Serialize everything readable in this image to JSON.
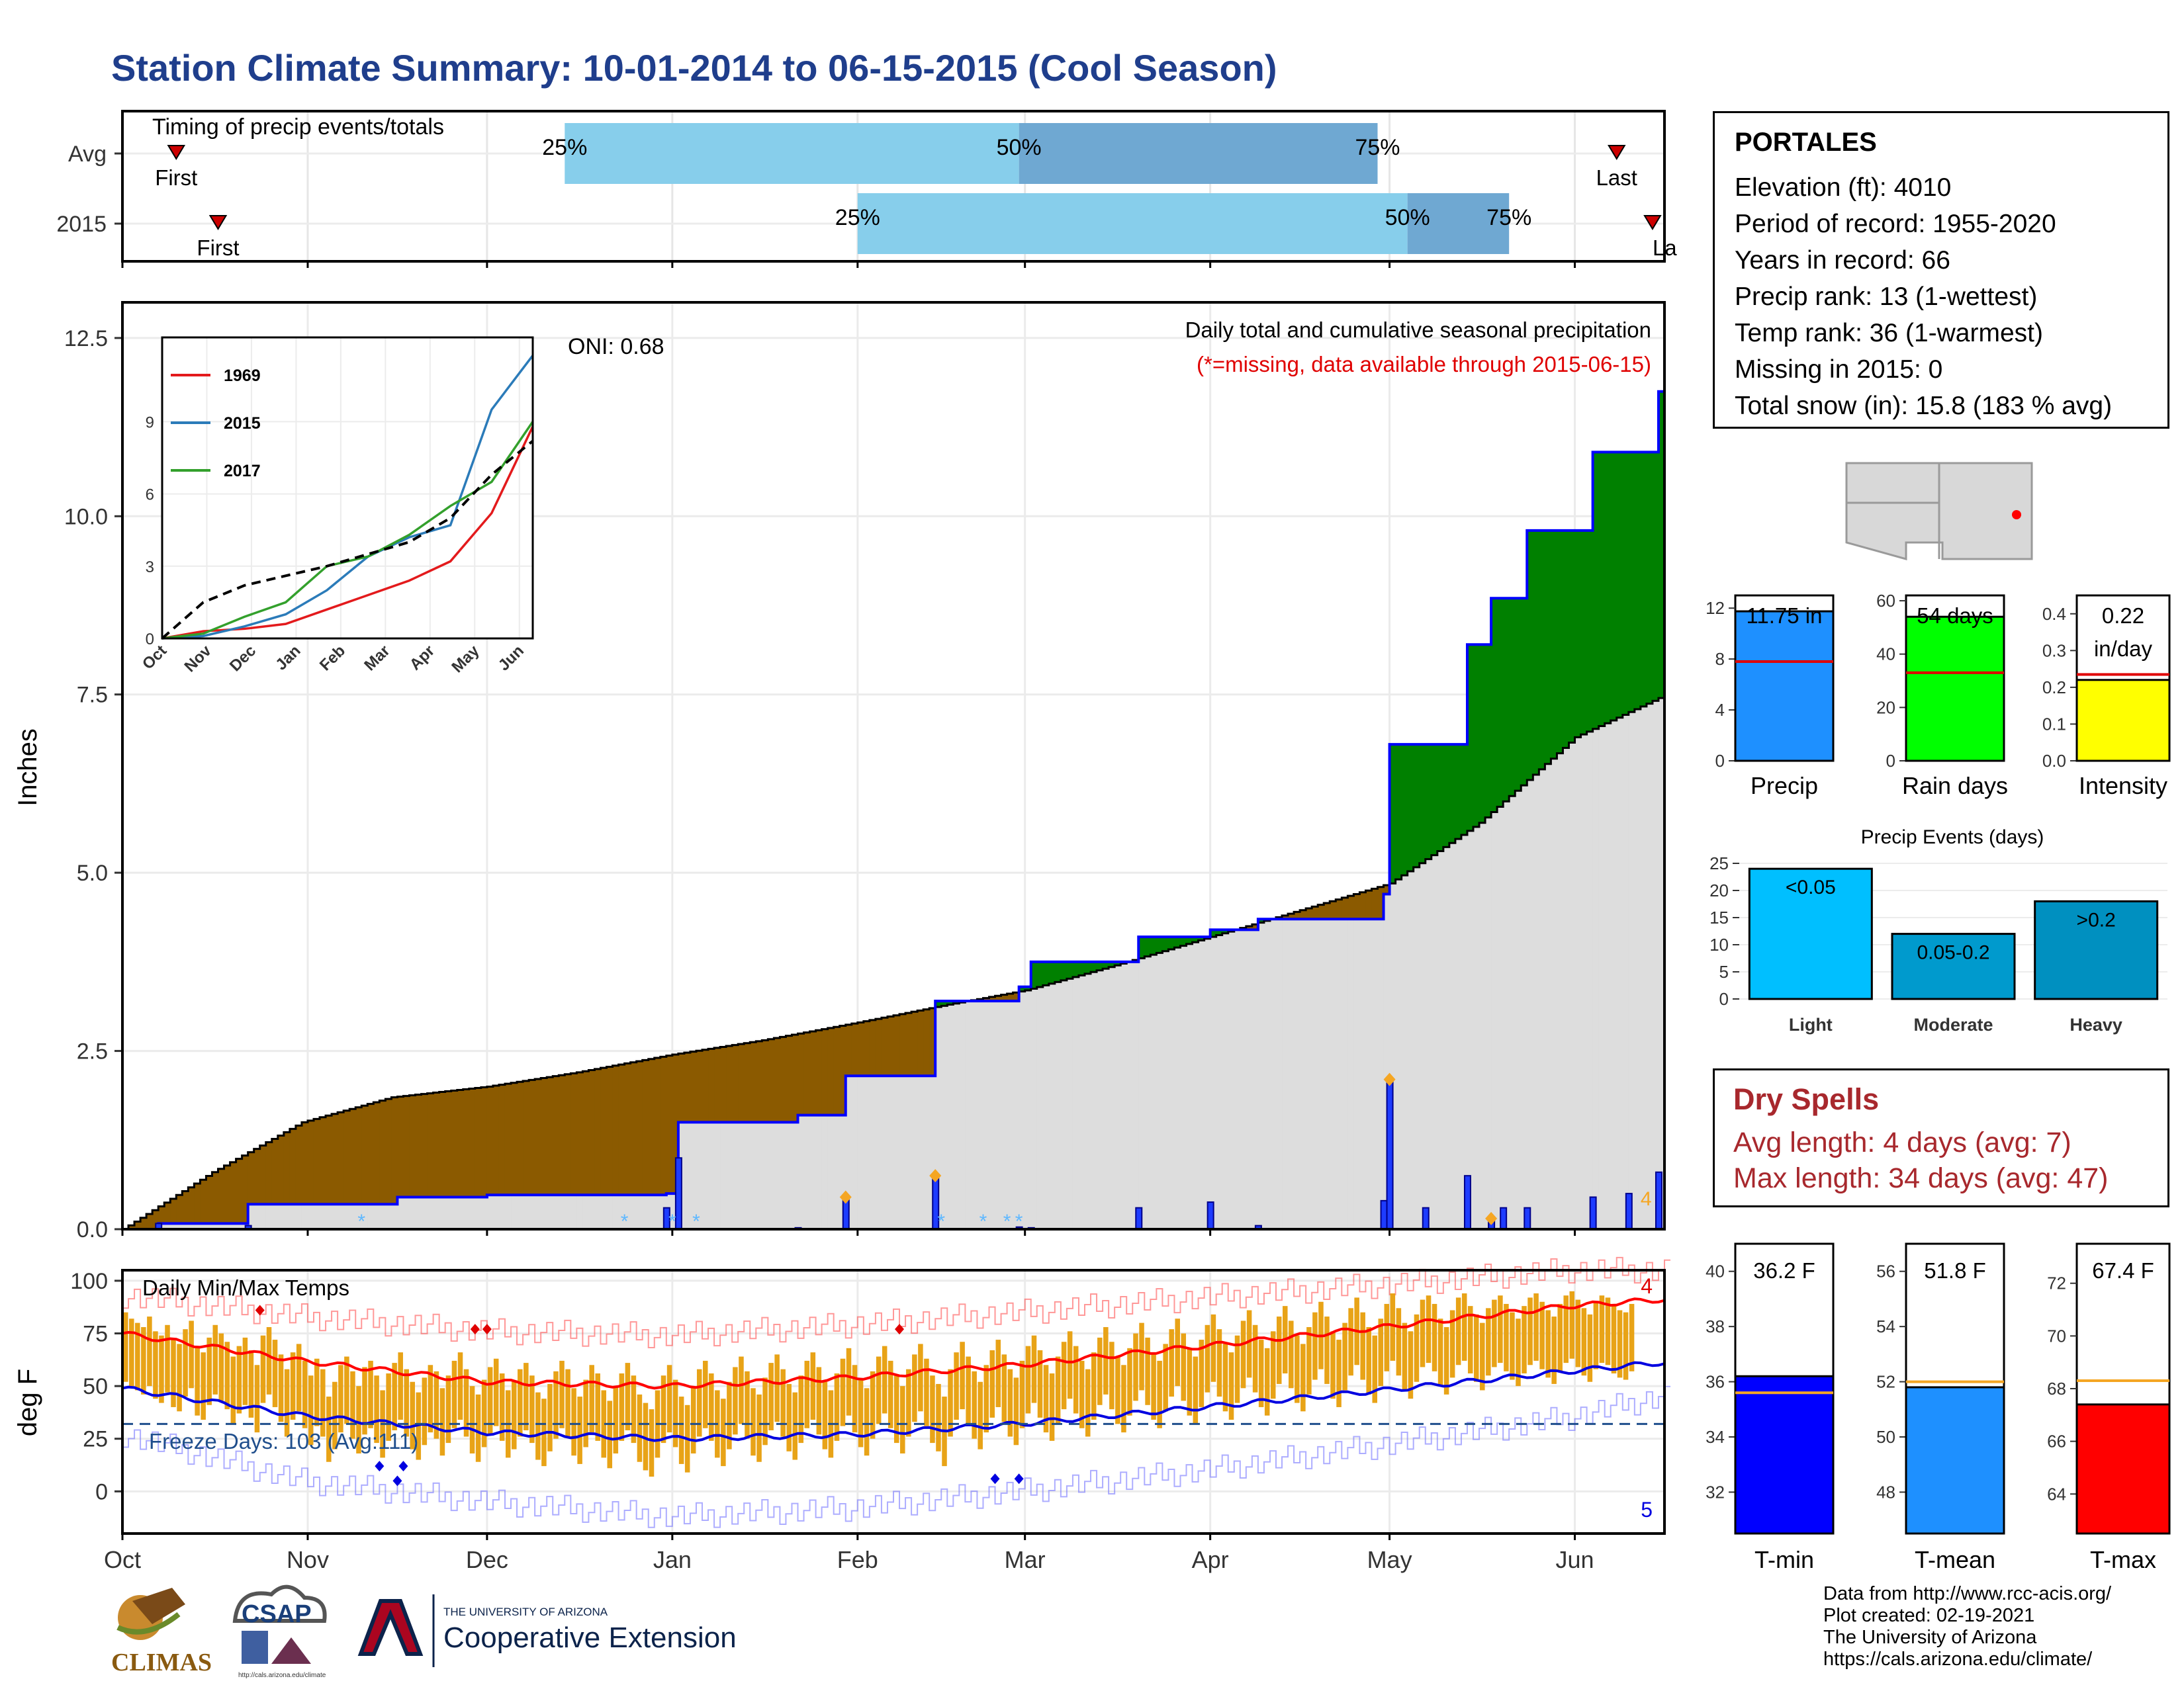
{
  "title": "Station Climate Summary: 10-01-2014 to 06-15-2015 (Cool Season)",
  "station": {
    "name": "PORTALES",
    "lines": [
      "Elevation (ft): 4010",
      "Period of record: 1955-2020",
      "Years in record: 66",
      "Precip rank: 13 (1-wettest)",
      "Temp rank: 36 (1-warmest)",
      "Missing in 2015: 0",
      "Total snow (in): 15.8 (183 % avg)"
    ]
  },
  "dry_spells": {
    "title": "Dry Spells",
    "avg": "Avg length: 4 days (avg: 7)",
    "max": "Max length: 34 days (avg: 47)"
  },
  "credits": [
    "Data from http://www.rcc-acis.org/",
    "Plot created: 02-19-2021",
    "The University of Arizona",
    "https://cals.arizona.edu/climate/"
  ],
  "logos": {
    "climas": "CLIMAS",
    "csap": "CSAP",
    "csap_url": "http://cals.arizona.edu/climate",
    "ua_top": "THE UNIVERSITY OF ARIZONA",
    "ua_bottom": "Cooperative Extension"
  },
  "colors": {
    "title": "#1f3e8c",
    "accent_red": "#d0021b",
    "above_avg": "#008000",
    "below_avg": "#8b5a00",
    "cum_line": "#0000ff",
    "avg_fill": "#dddddd",
    "tmin": "#0000ff",
    "tmean": "#1e90ff",
    "tmax": "#ff0000",
    "rain_days": "#00ff00",
    "intensity": "#ffff00",
    "light": "#00bfff",
    "moderate": "#009acd",
    "heavy": "#0090c0",
    "temp_bar": "#e8a317"
  },
  "chart_data": [
    {
      "type": "bar",
      "id": "timing",
      "title": "Timing of precip events/totals",
      "categories": [
        "Avg",
        "2015"
      ],
      "rows": [
        {
          "name": "Avg",
          "first": "Oct 10",
          "p25": "Dec 14",
          "p50": "Feb 28",
          "p75": "Apr 29",
          "last": "Jun 8",
          "first_label": "First",
          "last_label": "Last",
          "p25_label": "25%",
          "p50_label": "50%",
          "p75_label": "75%"
        },
        {
          "name": "2015",
          "first": "Oct 17",
          "p25": "Feb 1",
          "p50": "May 4",
          "p75": "May 21",
          "last": "Jun 14",
          "first_label": "First",
          "last_label": "La",
          "p25_label": "25%",
          "p50_label": "50%",
          "p75_label": "75%"
        }
      ]
    },
    {
      "type": "area",
      "id": "precip-main",
      "title": "Daily total and cumulative seasonal precipitation",
      "subtitle": "(*=missing, data available through 2015-06-15)",
      "oni": "ONI: 0.68",
      "ylabel": "Inches",
      "ylim": [
        0,
        13
      ],
      "yticks": [
        "0.0",
        "2.5",
        "5.0",
        "7.5",
        "10.0",
        "12.5"
      ],
      "xticks": [
        "Oct",
        "Nov",
        "Dec",
        "Jan",
        "Feb",
        "Mar",
        "Apr",
        "May",
        "Jun"
      ],
      "series": [
        {
          "name": "average cumulative",
          "x_day": [
            0,
            15,
            30,
            45,
            61,
            76,
            92,
            107,
            123,
            138,
            151,
            166,
            182,
            196,
            212,
            227,
            243,
            257
          ],
          "values": [
            0,
            0.8,
            1.5,
            1.85,
            2.0,
            2.2,
            2.45,
            2.65,
            2.9,
            3.15,
            3.35,
            3.7,
            4.1,
            4.45,
            4.85,
            5.7,
            6.9,
            7.45
          ]
        },
        {
          "name": "2015 cumulative",
          "x_day": [
            0,
            6,
            21,
            46,
            61,
            91,
            93,
            113,
            121,
            136,
            150,
            152,
            170,
            182,
            190,
            211,
            212,
            225,
            229,
            235,
            246,
            257
          ],
          "values": [
            0,
            0.08,
            0.35,
            0.45,
            0.48,
            0.5,
            1.5,
            1.6,
            2.15,
            3.2,
            3.4,
            3.75,
            4.1,
            4.2,
            4.35,
            4.7,
            6.8,
            8.2,
            8.85,
            9.8,
            10.9,
            11.75
          ]
        }
      ],
      "daily": [
        {
          "day": 6,
          "v": 0.08
        },
        {
          "day": 21,
          "v": 0.05
        },
        {
          "day": 91,
          "v": 0.3
        },
        {
          "day": 93,
          "v": 1.0
        },
        {
          "day": 113,
          "v": 0.02
        },
        {
          "day": 121,
          "v": 0.45
        },
        {
          "day": 136,
          "v": 0.75
        },
        {
          "day": 150,
          "v": 0.03
        },
        {
          "day": 152,
          "v": 0.02
        },
        {
          "day": 170,
          "v": 0.3
        },
        {
          "day": 182,
          "v": 0.38
        },
        {
          "day": 190,
          "v": 0.05
        },
        {
          "day": 211,
          "v": 0.4
        },
        {
          "day": 212,
          "v": 2.1
        },
        {
          "day": 218,
          "v": 0.3
        },
        {
          "day": 225,
          "v": 0.75
        },
        {
          "day": 229,
          "v": 0.15
        },
        {
          "day": 231,
          "v": 0.3
        },
        {
          "day": 235,
          "v": 0.3
        },
        {
          "day": 246,
          "v": 0.45
        },
        {
          "day": 252,
          "v": 0.5
        },
        {
          "day": 257,
          "v": 0.8
        }
      ],
      "snow_days": [
        40,
        84,
        92,
        96,
        137,
        144,
        148,
        150
      ],
      "snow_label": "4"
    },
    {
      "type": "line",
      "id": "cum-inset",
      "series": [
        {
          "name": "1969",
          "color": "#e31a1c",
          "values": [
            0,
            0.3,
            0.4,
            0.6,
            1.2,
            1.8,
            2.4,
            3.2,
            5.2,
            8.8
          ]
        },
        {
          "name": "2015",
          "color": "#2b7bb9",
          "values": [
            0,
            0.1,
            0.5,
            1.0,
            2.0,
            3.4,
            4.2,
            4.7,
            9.5,
            11.75
          ]
        },
        {
          "name": "2017",
          "color": "#33a02c",
          "values": [
            0,
            0.2,
            0.9,
            1.5,
            3.0,
            3.4,
            4.3,
            5.5,
            6.5,
            9.0
          ]
        },
        {
          "name": "average",
          "color": "#000000",
          "values": [
            0,
            1.5,
            2.2,
            2.6,
            3.0,
            3.5,
            4.0,
            5.0,
            6.8,
            8.2
          ]
        }
      ],
      "yticks": [
        "0",
        "3",
        "6",
        "9"
      ],
      "xticks": [
        "Oct",
        "Nov",
        "Dec",
        "Jan",
        "Feb",
        "Mar",
        "Apr",
        "May",
        "Jun"
      ]
    },
    {
      "type": "bar",
      "id": "precip-total",
      "value_label": "11.75 in",
      "value": 11.75,
      "avg": 7.8,
      "ylim": [
        0,
        13
      ],
      "yticks": [
        "0",
        "4",
        "8",
        "12"
      ],
      "xlabel": "Precip"
    },
    {
      "type": "bar",
      "id": "rain-days",
      "value_label": "54 days",
      "value": 54,
      "avg": 33,
      "ylim": [
        0,
        62
      ],
      "yticks": [
        "0",
        "20",
        "40",
        "60"
      ],
      "xlabel": "Rain days"
    },
    {
      "type": "bar",
      "id": "intensity",
      "value_label": "0.22",
      "value_label2": "in/day",
      "value": 0.22,
      "avg": 0.235,
      "ylim": [
        0,
        0.45
      ],
      "yticks": [
        "0.0",
        "0.1",
        "0.2",
        "0.3",
        "0.4"
      ],
      "xlabel": "Intensity"
    },
    {
      "type": "bar",
      "id": "precip-events",
      "title": "Precip Events (days)",
      "categories": [
        "Light",
        "Moderate",
        "Heavy"
      ],
      "values": [
        24,
        12,
        18
      ],
      "bar_labels": [
        "<0.05",
        "0.05-0.2",
        ">0.2"
      ],
      "ylim": [
        0,
        25
      ],
      "yticks": [
        "0",
        "5",
        "10",
        "15",
        "20",
        "25"
      ]
    },
    {
      "type": "bar",
      "id": "temps",
      "title": "Daily Min/Max Temps",
      "ylabel": "deg F",
      "ylim": [
        -20,
        105
      ],
      "yticks": [
        "0",
        "25",
        "50",
        "75",
        "100"
      ],
      "xticks": [
        "Oct",
        "Nov",
        "Dec",
        "Jan",
        "Feb",
        "Mar",
        "Apr",
        "May",
        "Jun"
      ],
      "freeze_label": "Freeze Days: 103 (Avg:111)",
      "freeze_line": 32,
      "record_high_count": "4",
      "record_low_count": "5",
      "avg_max": {
        "x_day": [
          0,
          30,
          61,
          92,
          122,
          150,
          181,
          211,
          242,
          257
        ],
        "values": [
          75,
          62,
          52,
          50,
          54,
          60,
          69,
          78,
          88,
          91
        ]
      },
      "avg_min": {
        "x_day": [
          0,
          30,
          61,
          92,
          122,
          150,
          181,
          211,
          242,
          257
        ],
        "values": [
          49,
          36,
          28,
          25,
          27,
          32,
          40,
          48,
          57,
          61
        ]
      },
      "rec_max": {
        "x_day": [
          0,
          30,
          61,
          92,
          122,
          150,
          181,
          211,
          242,
          257
        ],
        "values": [
          93,
          83,
          76,
          74,
          79,
          85,
          92,
          98,
          105,
          105
        ]
      },
      "rec_min": {
        "x_day": [
          0,
          30,
          61,
          92,
          122,
          150,
          181,
          211,
          242,
          257
        ],
        "values": [
          27,
          5,
          -5,
          -12,
          -8,
          0,
          10,
          22,
          35,
          45
        ]
      },
      "daily_max": [
        85,
        82,
        80,
        78,
        83,
        76,
        74,
        79,
        72,
        70,
        77,
        81,
        68,
        66,
        73,
        79,
        75,
        71,
        64,
        69,
        73,
        67,
        60,
        74,
        78,
        72,
        65,
        58,
        66,
        70,
        62,
        55,
        63,
        58,
        45,
        52,
        60,
        64,
        57,
        50,
        59,
        62,
        55,
        48,
        56,
        61,
        66,
        58,
        52,
        47,
        54,
        60,
        57,
        49,
        55,
        62,
        66,
        58,
        50,
        46,
        53,
        59,
        63,
        56,
        48,
        52,
        58,
        61,
        55,
        47,
        44,
        51,
        57,
        62,
        58,
        49,
        45,
        53,
        60,
        56,
        48,
        43,
        50,
        56,
        61,
        55,
        46,
        42,
        39,
        48,
        55,
        60,
        53,
        45,
        41,
        50,
        58,
        62,
        56,
        48,
        44,
        52,
        59,
        64,
        57,
        49,
        46,
        54,
        61,
        65,
        58,
        51,
        47,
        55,
        62,
        66,
        59,
        52,
        48,
        56,
        63,
        68,
        60,
        53,
        49,
        57,
        64,
        69,
        62,
        55,
        50,
        58,
        65,
        70,
        63,
        55,
        51,
        45,
        58,
        66,
        71,
        64,
        57,
        52,
        60,
        67,
        72,
        65,
        58,
        54,
        62,
        69,
        74,
        67,
        60,
        56,
        64,
        71,
        76,
        69,
        62,
        58,
        66,
        73,
        78,
        71,
        64,
        60,
        68,
        75,
        80,
        73,
        66,
        62,
        70,
        77,
        82,
        75,
        68,
        64,
        72,
        79,
        84,
        77,
        70,
        66,
        74,
        81,
        86,
        79,
        72,
        68,
        76,
        83,
        88,
        81,
        74,
        70,
        78,
        85,
        90,
        83,
        76,
        72,
        80,
        87,
        92,
        85,
        78,
        74,
        82,
        89,
        94,
        87,
        80,
        76,
        84,
        91,
        93,
        89,
        82,
        78,
        86,
        92,
        94,
        88,
        84,
        80,
        87,
        91,
        93,
        89,
        85,
        82,
        88,
        92,
        94,
        90,
        86,
        83,
        89,
        93,
        95,
        91,
        87,
        84,
        90,
        93,
        92,
        88,
        86,
        85,
        89
      ],
      "daily_min": [
        52,
        50,
        48,
        46,
        50,
        44,
        42,
        47,
        40,
        38,
        45,
        49,
        36,
        34,
        41,
        46,
        43,
        39,
        32,
        37,
        41,
        35,
        28,
        42,
        46,
        40,
        33,
        26,
        34,
        38,
        30,
        22,
        31,
        26,
        14,
        20,
        28,
        32,
        25,
        18,
        27,
        30,
        23,
        16,
        24,
        29,
        34,
        26,
        20,
        15,
        22,
        28,
        25,
        17,
        23,
        30,
        34,
        26,
        18,
        14,
        21,
        27,
        31,
        24,
        16,
        20,
        26,
        29,
        23,
        15,
        12,
        19,
        25,
        30,
        26,
        17,
        13,
        21,
        28,
        24,
        16,
        11,
        18,
        24,
        29,
        23,
        14,
        10,
        7,
        16,
        23,
        28,
        21,
        13,
        9,
        18,
        26,
        30,
        24,
        16,
        12,
        20,
        27,
        32,
        25,
        17,
        14,
        22,
        29,
        33,
        26,
        19,
        15,
        23,
        30,
        34,
        27,
        20,
        16,
        24,
        31,
        36,
        28,
        21,
        17,
        25,
        32,
        37,
        30,
        23,
        18,
        26,
        33,
        38,
        31,
        23,
        19,
        12,
        26,
        34,
        39,
        32,
        25,
        20,
        28,
        35,
        40,
        33,
        26,
        22,
        30,
        37,
        42,
        35,
        28,
        24,
        32,
        39,
        44,
        37,
        30,
        26,
        34,
        41,
        46,
        39,
        32,
        28,
        36,
        43,
        48,
        41,
        34,
        30,
        38,
        45,
        50,
        43,
        36,
        32,
        40,
        47,
        52,
        45,
        38,
        34,
        42,
        49,
        54,
        47,
        40,
        36,
        44,
        51,
        56,
        49,
        42,
        38,
        46,
        53,
        58,
        51,
        44,
        40,
        48,
        55,
        60,
        53,
        46,
        42,
        50,
        57,
        62,
        55,
        48,
        44,
        52,
        59,
        61,
        57,
        50,
        46,
        54,
        60,
        62,
        56,
        52,
        48,
        55,
        59,
        61,
        57,
        53,
        50,
        56,
        60,
        62,
        58,
        54,
        51,
        57,
        61,
        63,
        59,
        55,
        52,
        58,
        61,
        60,
        56,
        54,
        53,
        57
      ],
      "record_high_marks": [
        {
          "day": 23,
          "v": 86
        },
        {
          "day": 59,
          "v": 77
        },
        {
          "day": 61,
          "v": 77
        },
        {
          "day": 130,
          "v": 77
        }
      ],
      "record_low_marks": [
        {
          "day": 43,
          "v": 12
        },
        {
          "day": 46,
          "v": 5
        },
        {
          "day": 47,
          "v": 12
        },
        {
          "day": 146,
          "v": 6
        },
        {
          "day": 150,
          "v": 6
        }
      ]
    },
    {
      "type": "bar",
      "id": "tmin",
      "value_label": "36.2 F",
      "value": 36.2,
      "avg": 35.6,
      "ylim": [
        30.5,
        41
      ],
      "yticks": [
        "32",
        "34",
        "36",
        "38",
        "40"
      ],
      "xlabel": "T-min"
    },
    {
      "type": "bar",
      "id": "tmean",
      "value_label": "51.8 F",
      "value": 51.8,
      "avg": 52.0,
      "ylim": [
        46.5,
        57
      ],
      "yticks": [
        "48",
        "50",
        "52",
        "54",
        "56"
      ],
      "xlabel": "T-mean"
    },
    {
      "type": "bar",
      "id": "tmax",
      "value_label": "67.4 F",
      "value": 67.4,
      "avg": 68.3,
      "ylim": [
        62.5,
        73.5
      ],
      "yticks": [
        "64",
        "66",
        "68",
        "70",
        "72"
      ],
      "xlabel": "T-max"
    }
  ]
}
